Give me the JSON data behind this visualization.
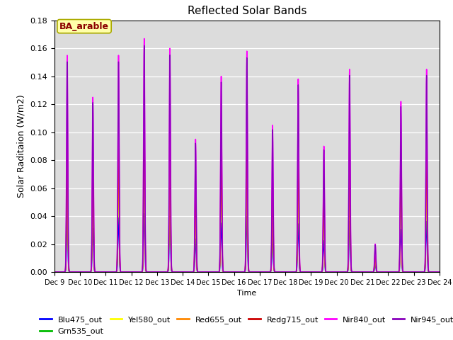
{
  "title": "Reflected Solar Bands",
  "xlabel": "Time",
  "ylabel": "Solar Raditaion (W/m2)",
  "ylim": [
    0,
    0.18
  ],
  "annotation_text": "BA_arable",
  "background_color": "#dcdcdc",
  "series_order": [
    "Blu475_out",
    "Grn535_out",
    "Yel580_out",
    "Red655_out",
    "Redg715_out",
    "Nir840_out",
    "Nir945_out"
  ],
  "series": {
    "Blu475_out": {
      "color": "#0000ff",
      "lw": 1.0
    },
    "Grn535_out": {
      "color": "#00bb00",
      "lw": 1.0
    },
    "Yel580_out": {
      "color": "#ffff00",
      "lw": 1.0
    },
    "Red655_out": {
      "color": "#ff8800",
      "lw": 1.0
    },
    "Redg715_out": {
      "color": "#cc0000",
      "lw": 1.0
    },
    "Nir840_out": {
      "color": "#ff00ff",
      "lw": 1.2
    },
    "Nir945_out": {
      "color": "#8800bb",
      "lw": 1.0
    }
  },
  "num_days": 15,
  "start_day": 9,
  "pts_per_day": 288,
  "day_peaks_nir840": [
    0.155,
    0.125,
    0.155,
    0.167,
    0.16,
    0.095,
    0.14,
    0.158,
    0.105,
    0.138,
    0.09,
    0.145,
    0.02,
    0.122,
    0.145
  ],
  "ratios": {
    "Blu475_out": 0.25,
    "Grn535_out": 0.5,
    "Yel580_out": 0.52,
    "Red655_out": 0.53,
    "Redg715_out": 0.67,
    "Nir840_out": 1.0,
    "Nir945_out": 0.97
  },
  "tick_days": [
    9,
    10,
    11,
    12,
    13,
    14,
    15,
    16,
    17,
    18,
    19,
    20,
    21,
    22,
    23,
    24
  ],
  "tick_labels": [
    "Dec 9",
    "Dec 1",
    "Dec 1",
    "Dec 1",
    "Dec 1",
    "Dec 1",
    "Dec 1",
    "Dec 1",
    "Dec 1",
    "Dec 1",
    "Dec 1",
    "Dec 2",
    "Dec 2",
    "Dec 2",
    "Dec 2",
    "Dec 2"
  ]
}
